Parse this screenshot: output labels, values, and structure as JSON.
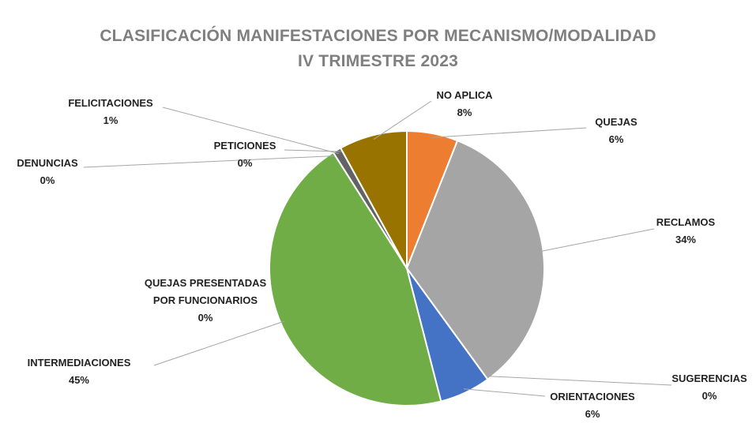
{
  "chart_data": {
    "type": "pie",
    "title": "CLASIFICACIÓN MANIFESTACIONES POR MECANISMO/MODALIDAD",
    "subtitle": "IV TRIMESTRE 2023",
    "categories": [
      "QUEJAS",
      "RECLAMOS",
      "SUGERENCIAS",
      "ORIENTACIONES",
      "INTERMEDIACIONES",
      "QUEJAS PRESENTADAS POR FUNCIONARIOS",
      "DENUNCIAS",
      "FELICITACIONES",
      "PETICIONES",
      "NO APLICA"
    ],
    "values": [
      6,
      34,
      0,
      6,
      45,
      0,
      0,
      1,
      0,
      8
    ],
    "value_labels": [
      "6%",
      "34%",
      "0%",
      "6%",
      "45%",
      "0%",
      "0%",
      "1%",
      "0%",
      "8%"
    ],
    "colors": [
      "#ed7d31",
      "#a5a5a5",
      "#ffc000",
      "#4472c4",
      "#70ad47",
      "#264478",
      "#9e480e",
      "#636363",
      "#43682b",
      "#997300"
    ]
  }
}
